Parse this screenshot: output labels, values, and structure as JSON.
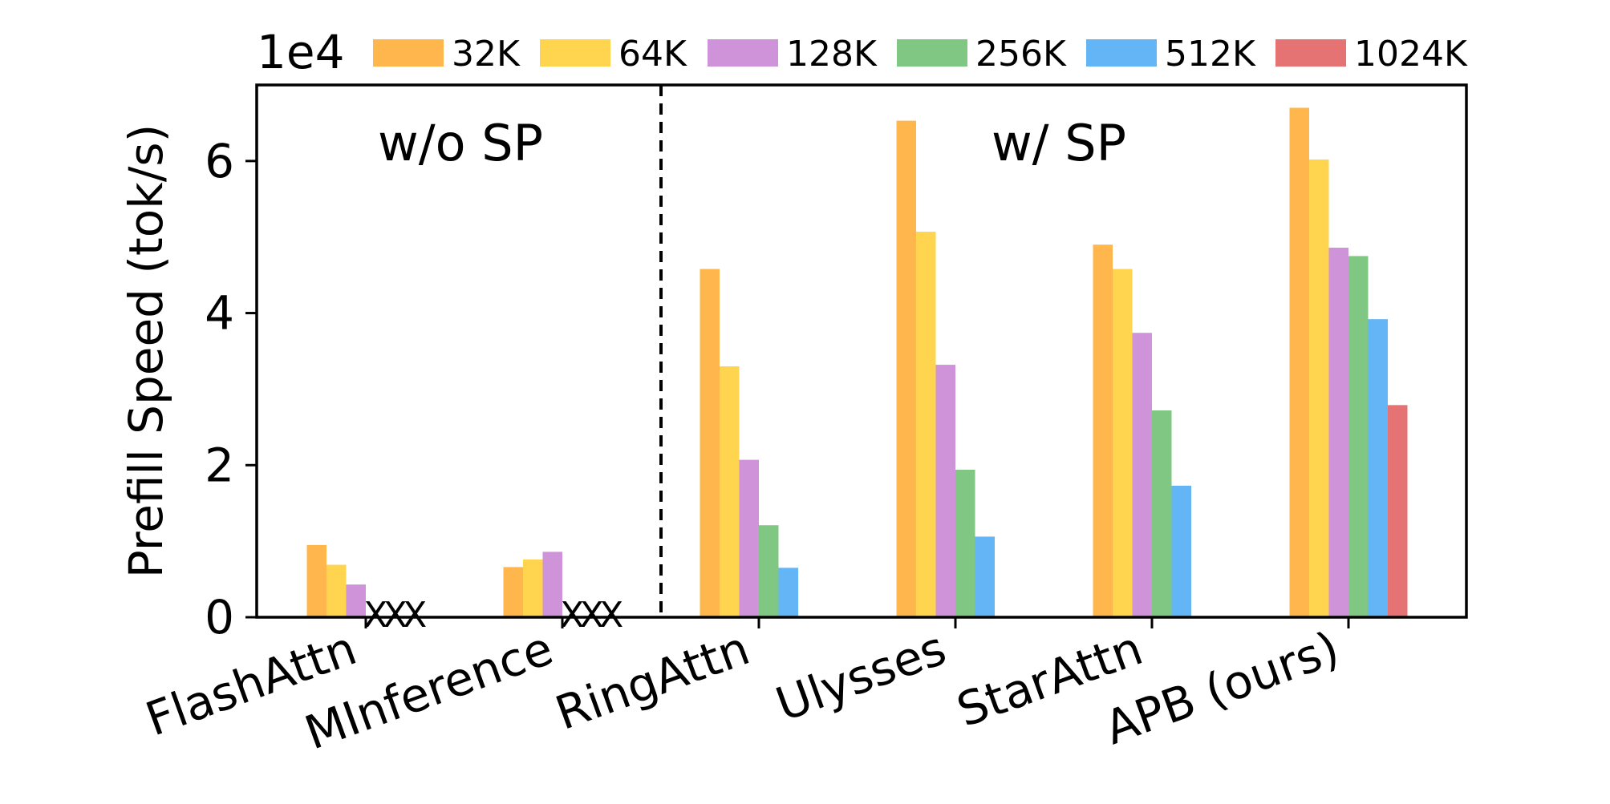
{
  "chart_data": {
    "type": "bar",
    "ylabel": "Prefill Speed (tok/s)",
    "y_multiplier": "1e4",
    "ylim": [
      0,
      7
    ],
    "yticks": [
      "0",
      "2",
      "4",
      "6"
    ],
    "categories": [
      "FlashAttn",
      "MInference",
      "RingAttn",
      "Ulysses",
      "StarAttn",
      "APB (ours)"
    ],
    "series": [
      {
        "name": "32K",
        "color": "#FFB74D",
        "values": [
          0.95,
          0.66,
          4.58,
          6.53,
          4.9,
          6.7
        ]
      },
      {
        "name": "64K",
        "color": "#FFD54F",
        "values": [
          0.69,
          0.76,
          3.3,
          5.07,
          4.58,
          6.02
        ]
      },
      {
        "name": "128K",
        "color": "#CE93D8",
        "values": [
          0.43,
          0.86,
          2.07,
          3.32,
          3.74,
          4.86
        ]
      },
      {
        "name": "256K",
        "color": "#81C784",
        "values": [
          null,
          null,
          1.21,
          1.94,
          2.72,
          4.75
        ]
      },
      {
        "name": "512K",
        "color": "#64B5F6",
        "values": [
          null,
          null,
          0.65,
          1.06,
          1.73,
          3.92
        ]
      },
      {
        "name": "1024K",
        "color": "#E57373",
        "values": [
          null,
          null,
          null,
          null,
          null,
          2.79
        ]
      }
    ],
    "missing_marker": "X",
    "annotations": [
      "w/o SP",
      "w/ SP"
    ],
    "divider_after_category": "MInference",
    "legend_position": "top",
    "grid": false
  }
}
